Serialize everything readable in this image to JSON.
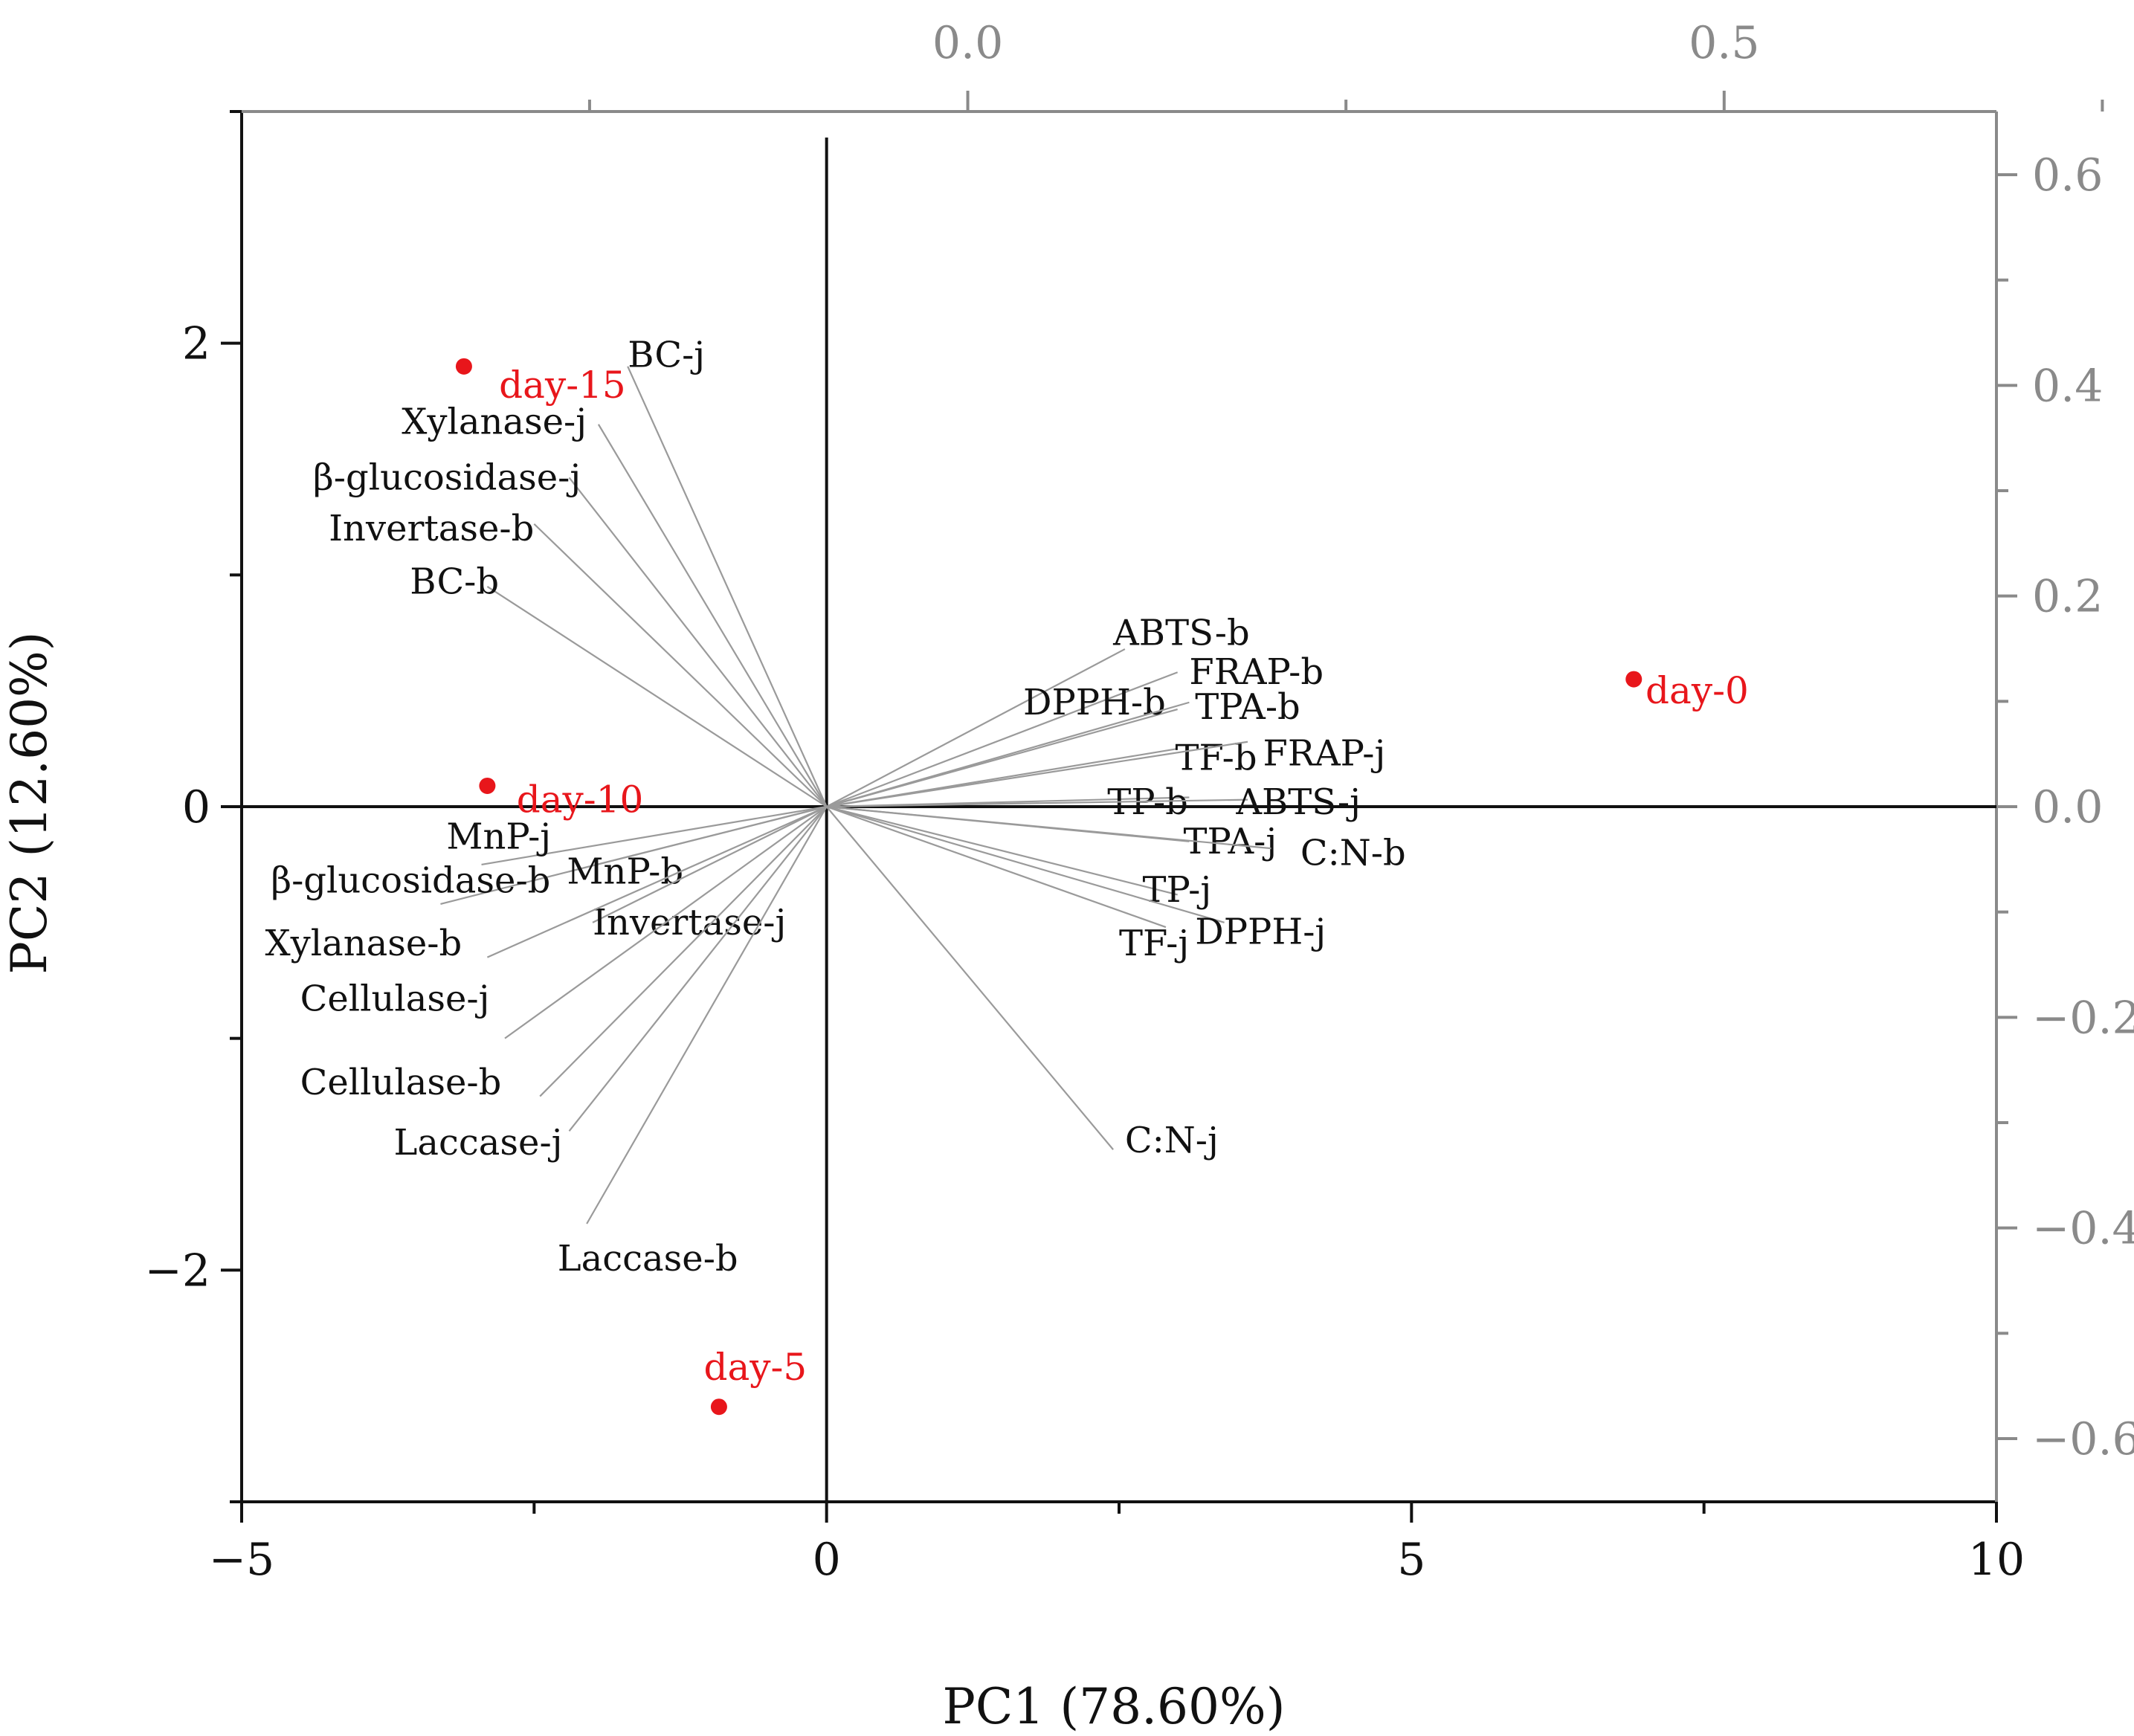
{
  "chart_data": {
    "type": "scatter",
    "subtype": "pca-biplot",
    "title": "",
    "xlabel": "PC1 (78.60%)",
    "ylabel": "PC2 (12.60%)",
    "xlim": [
      -5,
      10
    ],
    "ylim": [
      -3.0,
      3.0
    ],
    "x_ticks": [
      {
        "v": -5,
        "label": "−5"
      },
      {
        "v": 0,
        "label": "0"
      },
      {
        "v": 5,
        "label": "5"
      },
      {
        "v": 10,
        "label": "10"
      }
    ],
    "y_ticks": [
      {
        "v": 2,
        "label": "2"
      },
      {
        "v": 0,
        "label": "0"
      },
      {
        "v": -2,
        "label": "−2"
      }
    ],
    "top_axis": {
      "range": [
        -0.48,
        0.68
      ],
      "ticks": [
        {
          "v": 0.0,
          "label": "0.0"
        },
        {
          "v": 0.5,
          "label": "0.5"
        }
      ]
    },
    "right_axis": {
      "range": [
        -0.66,
        0.66
      ],
      "ticks": [
        {
          "v": 0.6,
          "label": "0.6"
        },
        {
          "v": 0.4,
          "label": "0.4"
        },
        {
          "v": 0.2,
          "label": "0.2"
        },
        {
          "v": 0.0,
          "label": "0.0"
        },
        {
          "v": -0.2,
          "label": "−0.2"
        },
        {
          "v": -0.4,
          "label": "−0.4"
        },
        {
          "v": -0.6,
          "label": "−0.6"
        }
      ]
    },
    "scores": [
      {
        "label": "day-15",
        "x": -3.1,
        "y": 1.9,
        "lx": -2.8,
        "ly": 1.82,
        "anchor": "start"
      },
      {
        "label": "day-10",
        "x": -2.9,
        "y": 0.09,
        "lx": -2.65,
        "ly": 0.03,
        "anchor": "start"
      },
      {
        "label": "day-5",
        "x": -0.92,
        "y": -2.59,
        "lx": -1.05,
        "ly": -2.42,
        "anchor": "start"
      },
      {
        "label": "day-0",
        "x": 6.9,
        "y": 0.55,
        "lx": 7.0,
        "ly": 0.5,
        "anchor": "start"
      }
    ],
    "loadings": [
      {
        "label": "BC-j",
        "x": -1.7,
        "y": 1.9,
        "lx": -1.7,
        "ly": 1.95,
        "anchor": "start"
      },
      {
        "label": "Xylanase-j",
        "x": -1.95,
        "y": 1.65,
        "lx": -2.05,
        "ly": 1.66,
        "anchor": "end"
      },
      {
        "label": "β-glucosidase-j",
        "x": -2.2,
        "y": 1.42,
        "lx": -2.1,
        "ly": 1.42,
        "anchor": "end"
      },
      {
        "label": "Invertase-b",
        "x": -2.5,
        "y": 1.22,
        "lx": -2.5,
        "ly": 1.2,
        "anchor": "end"
      },
      {
        "label": "BC-b",
        "x": -2.9,
        "y": 0.95,
        "lx": -2.8,
        "ly": 0.97,
        "anchor": "end"
      },
      {
        "label": "ABTS-b",
        "x": 2.55,
        "y": 0.68,
        "lx": 2.45,
        "ly": 0.75,
        "anchor": "start"
      },
      {
        "label": "FRAP-b",
        "x": 3.0,
        "y": 0.58,
        "lx": 3.1,
        "ly": 0.58,
        "anchor": "start"
      },
      {
        "label": "DPPH-b",
        "x": 3.0,
        "y": 0.42,
        "lx": 1.68,
        "ly": 0.45,
        "anchor": "start"
      },
      {
        "label": "TPA-b",
        "x": 3.1,
        "y": 0.45,
        "lx": 3.15,
        "ly": 0.43,
        "anchor": "start"
      },
      {
        "label": "TF-b",
        "x": 3.0,
        "y": 0.25,
        "lx": 2.98,
        "ly": 0.21,
        "anchor": "start"
      },
      {
        "label": "FRAP-j",
        "x": 3.6,
        "y": 0.28,
        "lx": 3.73,
        "ly": 0.23,
        "anchor": "start"
      },
      {
        "label": "TP-b",
        "x": 3.1,
        "y": 0.04,
        "lx": 2.4,
        "ly": 0.02,
        "anchor": "start"
      },
      {
        "label": "ABTS-j",
        "x": 3.6,
        "y": 0.03,
        "lx": 3.5,
        "ly": 0.02,
        "anchor": "start"
      },
      {
        "label": "TPA-j",
        "x": 3.1,
        "y": -0.15,
        "lx": 3.05,
        "ly": -0.15,
        "anchor": "start"
      },
      {
        "label": "C:N-b",
        "x": 3.8,
        "y": -0.18,
        "lx": 4.05,
        "ly": -0.2,
        "anchor": "start"
      },
      {
        "label": "TP-j",
        "x": 3.0,
        "y": -0.38,
        "lx": 2.7,
        "ly": -0.36,
        "anchor": "start"
      },
      {
        "label": "TF-j",
        "x": 2.9,
        "y": -0.52,
        "lx": 2.5,
        "ly": -0.59,
        "anchor": "start"
      },
      {
        "label": "DPPH-j",
        "x": 3.4,
        "y": -0.5,
        "lx": 3.15,
        "ly": -0.54,
        "anchor": "start"
      },
      {
        "label": "C:N-j",
        "x": 2.45,
        "y": -1.48,
        "lx": 2.55,
        "ly": -1.44,
        "anchor": "start"
      },
      {
        "label": "MnP-j",
        "x": -2.95,
        "y": -0.25,
        "lx": -3.25,
        "ly": -0.13,
        "anchor": "start"
      },
      {
        "label": "β-glucosidase-b",
        "x": -3.3,
        "y": -0.42,
        "lx": -4.75,
        "ly": -0.32,
        "anchor": "start"
      },
      {
        "label": "MnP-b",
        "x": -2.2,
        "y": -0.28,
        "lx": -2.22,
        "ly": -0.28,
        "anchor": "start"
      },
      {
        "label": "Invertase-j",
        "x": -2.0,
        "y": -0.5,
        "lx": -2.0,
        "ly": -0.5,
        "anchor": "start"
      },
      {
        "label": "Xylanase-b",
        "x": -2.9,
        "y": -0.65,
        "lx": -4.8,
        "ly": -0.59,
        "anchor": "start"
      },
      {
        "label": "Cellulase-j",
        "x": -2.75,
        "y": -1.0,
        "lx": -4.5,
        "ly": -0.83,
        "anchor": "start"
      },
      {
        "label": "Cellulase-b",
        "x": -2.45,
        "y": -1.25,
        "lx": -4.5,
        "ly": -1.19,
        "anchor": "start"
      },
      {
        "label": "Laccase-j",
        "x": -2.2,
        "y": -1.4,
        "lx": -3.7,
        "ly": -1.45,
        "anchor": "start"
      },
      {
        "label": "Laccase-b",
        "x": -2.05,
        "y": -1.8,
        "lx": -2.3,
        "ly": -1.95,
        "anchor": "start"
      }
    ]
  },
  "colors": {
    "score": "#e8161b",
    "axis": "#111111",
    "secondary_axis": "#8a8a8a",
    "loading_line": "#9a9a9a"
  }
}
